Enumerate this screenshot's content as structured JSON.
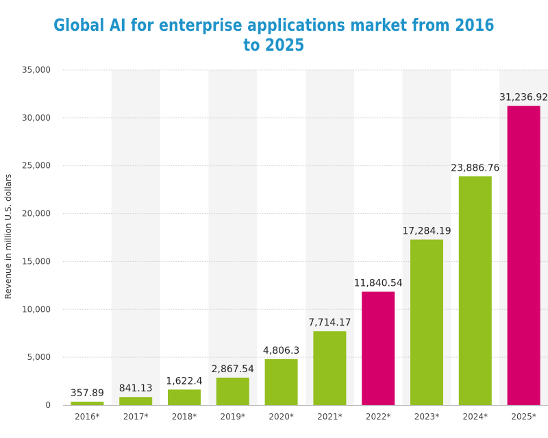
{
  "chart_data": {
    "type": "bar",
    "title": "Global AI for enterprise applications market from 2016 to 2025",
    "xlabel": "",
    "ylabel": "Revenue in million U.S. dollars",
    "categories": [
      "2016*",
      "2017*",
      "2018*",
      "2019*",
      "2020*",
      "2021*",
      "2022*",
      "2023*",
      "2024*",
      "2025*"
    ],
    "values": [
      357.89,
      841.13,
      1622.4,
      2867.54,
      4806.3,
      7714.17,
      11840.54,
      17284.19,
      23886.76,
      31236.92
    ],
    "value_labels": [
      "357.89",
      "841.13",
      "1,622.4",
      "2,867.54",
      "4,806.3",
      "7,714.17",
      "11,840.54",
      "17,284.19",
      "23,886.76",
      "31,236.92"
    ],
    "ylim": [
      0,
      35000
    ],
    "yticks": [
      0,
      5000,
      10000,
      15000,
      20000,
      25000,
      30000,
      35000
    ],
    "ytick_labels": [
      "0",
      "5,000",
      "10,000",
      "15,000",
      "20,000",
      "25,000",
      "30,000",
      "35,000"
    ],
    "grid": true,
    "bar_colors": [
      "#93c01f",
      "#93c01f",
      "#93c01f",
      "#93c01f",
      "#93c01f",
      "#93c01f",
      "#d6006a",
      "#93c01f",
      "#93c01f",
      "#d6006a"
    ],
    "column_band_color": "#f4f4f4",
    "grid_color": "#cccccc"
  }
}
